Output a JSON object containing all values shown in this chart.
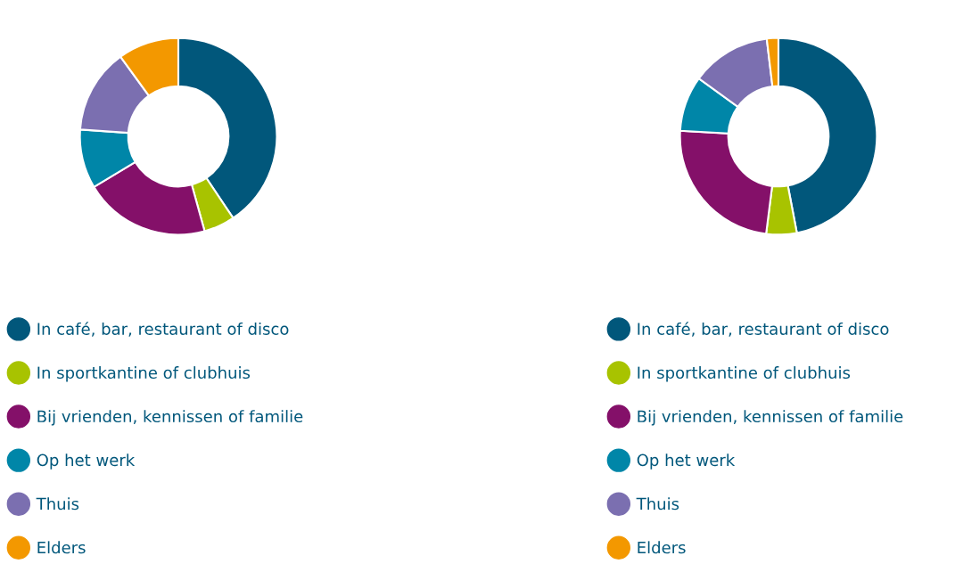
{
  "chart_data": [
    {
      "type": "donut",
      "categories": [
        "In café, bar, restaurant of disco",
        "In sportkantine of clubhuis",
        "Bij vrienden, kennissen of familie",
        "Op het werk",
        "Thuis",
        "Elders"
      ],
      "values": [
        40.6,
        5.1,
        20.7,
        9.7,
        13.9,
        10
      ],
      "colors": [
        "#01577b",
        "#a8c300",
        "#841069",
        "#0086a8",
        "#7b6fb0",
        "#f39800"
      ],
      "legend": "bottom"
    },
    {
      "type": "donut",
      "categories": [
        "In café, bar, restaurant of disco",
        "In sportkantine of clubhuis",
        "Bij vrienden, kennissen of familie",
        "Op het werk",
        "Thuis",
        "Elders"
      ],
      "values": [
        47,
        5,
        23.9,
        9.1,
        13.1,
        1.9
      ],
      "colors": [
        "#01577b",
        "#a8c300",
        "#841069",
        "#0086a8",
        "#7b6fb0",
        "#f39800"
      ],
      "legend": "bottom"
    }
  ]
}
